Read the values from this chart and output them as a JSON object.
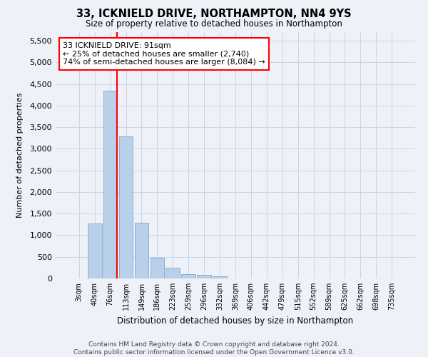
{
  "title": "33, ICKNIELD DRIVE, NORTHAMPTON, NN4 9YS",
  "subtitle": "Size of property relative to detached houses in Northampton",
  "xlabel": "Distribution of detached houses by size in Northampton",
  "ylabel": "Number of detached properties",
  "categories": [
    "3sqm",
    "40sqm",
    "76sqm",
    "113sqm",
    "149sqm",
    "186sqm",
    "223sqm",
    "259sqm",
    "296sqm",
    "332sqm",
    "369sqm",
    "406sqm",
    "442sqm",
    "479sqm",
    "515sqm",
    "552sqm",
    "589sqm",
    "625sqm",
    "662sqm",
    "698sqm",
    "735sqm"
  ],
  "values": [
    0,
    1280,
    4350,
    3290,
    1290,
    480,
    240,
    100,
    75,
    55,
    0,
    0,
    0,
    0,
    0,
    0,
    0,
    0,
    0,
    0,
    0
  ],
  "bar_color": "#b8d0ea",
  "bar_edge_color": "#7aaad0",
  "vline_x_index": 2,
  "vline_color": "red",
  "annotation_text": "33 ICKNIELD DRIVE: 91sqm\n← 25% of detached houses are smaller (2,740)\n74% of semi-detached houses are larger (8,084) →",
  "annotation_box_color": "white",
  "annotation_box_edge_color": "red",
  "ylim": [
    0,
    5700
  ],
  "yticks": [
    0,
    500,
    1000,
    1500,
    2000,
    2500,
    3000,
    3500,
    4000,
    4500,
    5000,
    5500
  ],
  "grid_color": "#c8d4e8",
  "footer_text": "Contains HM Land Registry data © Crown copyright and database right 2024.\nContains public sector information licensed under the Open Government Licence v3.0.",
  "bg_color": "#eef2f8"
}
